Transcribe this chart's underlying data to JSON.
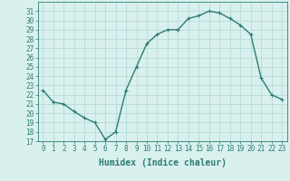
{
  "x": [
    0,
    1,
    2,
    3,
    4,
    5,
    6,
    7,
    8,
    9,
    10,
    11,
    12,
    13,
    14,
    15,
    16,
    17,
    18,
    19,
    20,
    21,
    22,
    23
  ],
  "y": [
    22.5,
    21.2,
    21.0,
    20.2,
    19.5,
    19.0,
    17.2,
    18.0,
    22.5,
    25.0,
    27.5,
    28.5,
    29.0,
    29.0,
    30.2,
    30.5,
    31.0,
    30.8,
    30.2,
    29.5,
    28.5,
    23.8,
    22.0,
    21.5
  ],
  "line_color": "#2e7d6e",
  "marker": "+",
  "bg_color": "#d8f0ee",
  "grid_color": "#b0d8d4",
  "xlabel": "Humidex (Indice chaleur)",
  "ylabel": "",
  "title": "",
  "xlim": [
    -0.5,
    23.5
  ],
  "ylim": [
    17,
    32
  ],
  "yticks": [
    17,
    18,
    19,
    20,
    21,
    22,
    23,
    24,
    25,
    26,
    27,
    28,
    29,
    30,
    31
  ],
  "xticks": [
    0,
    1,
    2,
    3,
    4,
    5,
    6,
    7,
    8,
    9,
    10,
    11,
    12,
    13,
    14,
    15,
    16,
    17,
    18,
    19,
    20,
    21,
    22,
    23
  ],
  "tick_color": "#2e7d6e",
  "label_color": "#2e7d6e",
  "font_size": 5.5,
  "xlabel_fontsize": 7,
  "linewidth": 1.0,
  "markersize": 3
}
